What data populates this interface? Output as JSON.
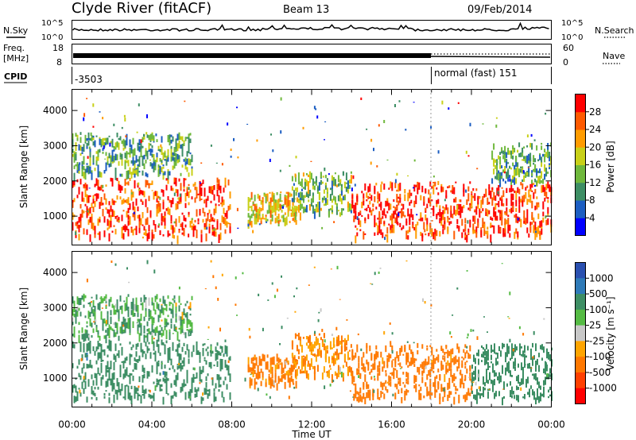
{
  "header": {
    "station": "Clyde River (fitACF)",
    "beam": "Beam 13",
    "date": "09/Feb/2014"
  },
  "strip_noise": {
    "left_label": "N.Sky",
    "right_label": "N.Search",
    "left_ticks": [
      "10^5",
      "10^0"
    ],
    "right_ticks": [
      "10^5",
      "10^0"
    ]
  },
  "strip_freq": {
    "left_label_line1": "Freq.",
    "left_label_line2": "[MHz]",
    "right_label": "Nave",
    "left_ticks": [
      "18",
      "8"
    ],
    "right_ticks": [
      "60",
      "0"
    ]
  },
  "strip_cpid": {
    "label": "CPID",
    "value_left": "-3503",
    "value_right": "normal (fast) 151",
    "switch_time_hours": 18.0
  },
  "chart_data": [
    {
      "type": "heatmap",
      "panel": "power",
      "ylabel": "Slant Range [km]",
      "xlabel": "",
      "xlim_hours": [
        0,
        24
      ],
      "ylim": [
        180,
        4600
      ],
      "yticks": [
        1000,
        2000,
        3000,
        4000
      ],
      "colorbar": {
        "label": "Power [dB]",
        "ticks": [
          4,
          8,
          12,
          16,
          20,
          24,
          28
        ],
        "colors": [
          "#0000ff",
          "#1c5ec2",
          "#3d8e64",
          "#6fb83c",
          "#c8d018",
          "#ff9c00",
          "#ff5a00",
          "#ff0000"
        ],
        "range": [
          0,
          32
        ]
      },
      "echo_bands": [
        {
          "t_start": 0.0,
          "t_end": 7.9,
          "r_min": 450,
          "r_max": 2100,
          "level": 27
        },
        {
          "t_start": 0.0,
          "t_end": 6.0,
          "r_min": 2200,
          "r_max": 3400,
          "level": 12
        },
        {
          "t_start": 8.8,
          "t_end": 11.2,
          "r_min": 850,
          "r_max": 1700,
          "level": 20
        },
        {
          "t_start": 11.0,
          "t_end": 14.0,
          "r_min": 1100,
          "r_max": 2300,
          "level": 14
        },
        {
          "t_start": 14.0,
          "t_end": 24.0,
          "r_min": 450,
          "r_max": 2000,
          "level": 28
        },
        {
          "t_start": 21.0,
          "t_end": 24.0,
          "r_min": 2000,
          "r_max": 3100,
          "level": 12
        }
      ]
    },
    {
      "type": "heatmap",
      "panel": "velocity",
      "ylabel": "Slant Range [km]",
      "xlabel": "Time UT",
      "xlim_hours": [
        0,
        24
      ],
      "ylim": [
        180,
        4600
      ],
      "yticks": [
        1000,
        2000,
        3000,
        4000
      ],
      "xticks": [
        "00:00",
        "04:00",
        "08:00",
        "12:00",
        "16:00",
        "20:00",
        "00:00"
      ],
      "colorbar": {
        "label": "Velocity [m s⁻¹]",
        "ticks": [
          "1000",
          "500",
          "100",
          "25",
          "-25",
          "-100",
          "-500",
          "-1000"
        ],
        "colors": [
          "#2a50b0",
          "#2e7ab8",
          "#3d8e64",
          "#55bb44",
          "#c8c8c8",
          "#ffa500",
          "#ff7800",
          "#ff4000",
          "#ff0000"
        ]
      },
      "echo_bands": [
        {
          "t_start": 0.0,
          "t_end": 7.9,
          "r_min": 450,
          "r_max": 2100,
          "velocity": 300
        },
        {
          "t_start": 0.0,
          "t_end": 6.0,
          "r_min": 2200,
          "r_max": 3400,
          "velocity": 100
        },
        {
          "t_start": 8.8,
          "t_end": 11.2,
          "r_min": 850,
          "r_max": 1700,
          "velocity": -150
        },
        {
          "t_start": 11.0,
          "t_end": 14.0,
          "r_min": 1100,
          "r_max": 2300,
          "velocity": -100
        },
        {
          "t_start": 14.0,
          "t_end": 20.0,
          "r_min": 450,
          "r_max": 2000,
          "velocity": -200
        },
        {
          "t_start": 20.0,
          "t_end": 24.0,
          "r_min": 450,
          "r_max": 2000,
          "velocity": 300
        }
      ]
    }
  ]
}
